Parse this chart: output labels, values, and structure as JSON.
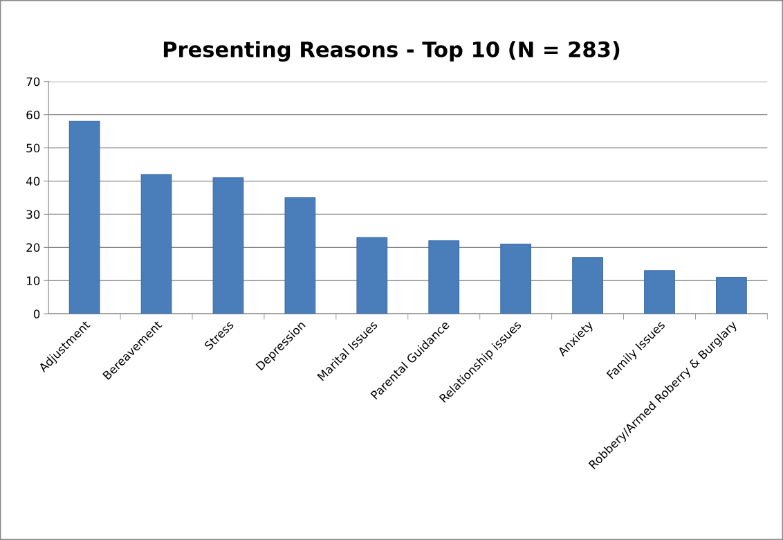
{
  "chart_data": {
    "type": "bar",
    "title": "Presenting Reasons - Top 10 (N = 283)",
    "categories": [
      "Adjustment",
      "Bereavement",
      "Stress",
      "Depression",
      "Marital Issues",
      "Parental Guidance",
      "Relationship issues",
      "Anxiety",
      "Family Issues",
      "Robbery/Armed Roberry & Burglary"
    ],
    "values": [
      58,
      42,
      41,
      35,
      23,
      22,
      21,
      17,
      13,
      11
    ],
    "color": "#4a7ebb",
    "ylim": [
      0,
      70
    ],
    "yticks": [
      0,
      10,
      20,
      30,
      40,
      50,
      60,
      70
    ],
    "grid": "y",
    "legend": false
  }
}
